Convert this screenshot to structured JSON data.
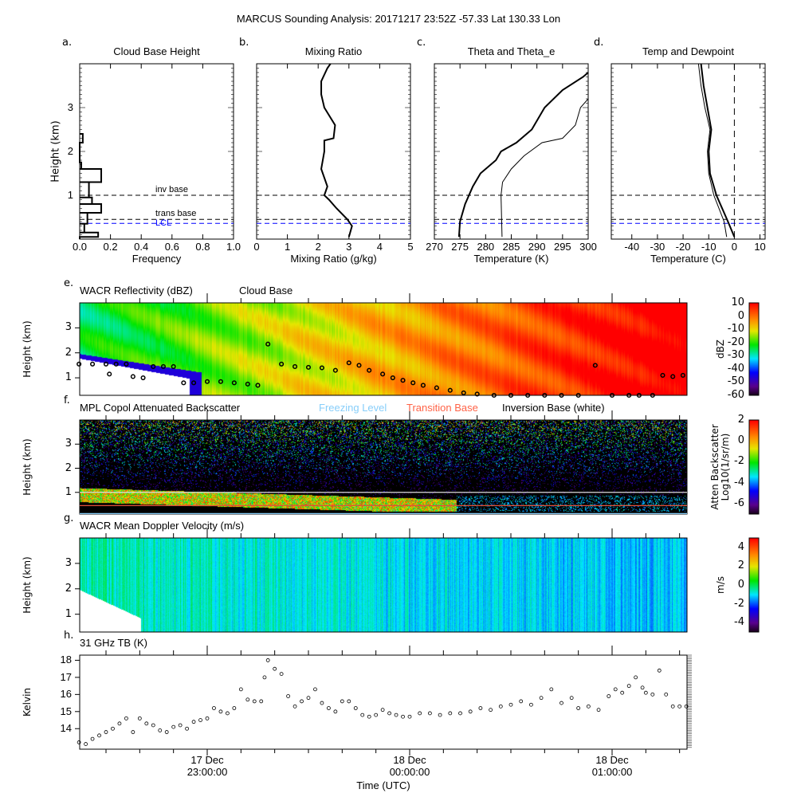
{
  "title": "MARCUS Sounding Analysis: 20171217 23:52Z   -57.33 Lat  130.33 Lon",
  "chart_data": [
    {
      "id": "a",
      "type": "step",
      "letter": "a.",
      "title": "Cloud Base Height",
      "xlabel": "Frequency",
      "ylabel": "Height (km)",
      "xlim": [
        0,
        1
      ],
      "ylim": [
        0,
        4
      ],
      "xticks": [
        "0.0",
        "0.2",
        "0.4",
        "0.6",
        "0.8",
        "1.0"
      ],
      "yticks": [
        "1",
        "2",
        "3"
      ],
      "bins": [
        {
          "from": 0.05,
          "to": 0.15,
          "freq": 0.12
        },
        {
          "from": 0.15,
          "to": 0.35,
          "freq": 0.03
        },
        {
          "from": 0.35,
          "to": 0.6,
          "freq": 0.05
        },
        {
          "from": 0.6,
          "to": 0.8,
          "freq": 0.14
        },
        {
          "from": 0.8,
          "to": 0.95,
          "freq": 0.08
        },
        {
          "from": 0.95,
          "to": 1.3,
          "freq": 0.06
        },
        {
          "from": 1.3,
          "to": 1.6,
          "freq": 0.14
        },
        {
          "from": 1.6,
          "to": 1.75,
          "freq": 0.01
        },
        {
          "from": 1.75,
          "to": 2.2,
          "freq": 0
        },
        {
          "from": 2.2,
          "to": 2.4,
          "freq": 0.02
        }
      ],
      "ref_lines": [
        {
          "label": "inv base",
          "height": 1.0,
          "color": "#000000"
        },
        {
          "label": "trans base",
          "height": 0.45,
          "color": "#000000"
        },
        {
          "label": "LCL",
          "height": 0.36,
          "color": "#0000ff"
        }
      ]
    },
    {
      "id": "b",
      "type": "line",
      "letter": "b.",
      "title": "Mixing Ratio",
      "xlabel": "Mixing Ratio (g/kg)",
      "xlim": [
        0,
        5
      ],
      "ylim": [
        0,
        4
      ],
      "xticks": [
        "0",
        "1",
        "2",
        "3",
        "4",
        "5"
      ],
      "series": [
        {
          "x": [
            3.0,
            3.1,
            2.95,
            2.6,
            2.35,
            2.2,
            2.3,
            2.1,
            2.2,
            2.2,
            2.5,
            2.55,
            2.2,
            2.1,
            2.1,
            2.3,
            2.4
          ],
          "y": [
            0.05,
            0.3,
            0.45,
            0.7,
            0.9,
            1.0,
            1.2,
            1.6,
            2.0,
            2.25,
            2.3,
            2.6,
            3.0,
            3.3,
            3.6,
            3.9,
            4.0
          ],
          "width": 2
        }
      ]
    },
    {
      "id": "c",
      "type": "line",
      "letter": "c.",
      "title": "Theta and Theta_e",
      "xlabel": "Temperature (K)",
      "xlim": [
        270,
        300
      ],
      "ylim": [
        0,
        4
      ],
      "xticks": [
        "270",
        "275",
        "280",
        "285",
        "290",
        "295",
        "300"
      ],
      "series": [
        {
          "x": [
            274.8,
            275,
            276,
            277.5,
            279,
            282,
            283,
            286,
            289,
            291.5,
            295,
            299,
            300
          ],
          "y": [
            0.05,
            0.4,
            0.8,
            1.2,
            1.5,
            1.8,
            2.0,
            2.2,
            2.5,
            3.0,
            3.4,
            3.7,
            3.8
          ],
          "width": 2
        },
        {
          "x": [
            283.2,
            283,
            283.3,
            285,
            287.5,
            291,
            295,
            297.5,
            298.5,
            300
          ],
          "y": [
            0.05,
            1.0,
            1.3,
            1.6,
            1.9,
            2.2,
            2.3,
            2.6,
            3.0,
            3.2
          ],
          "width": 1
        }
      ]
    },
    {
      "id": "d",
      "type": "line",
      "letter": "d.",
      "title": "Temp and Dewpoint",
      "xlabel": "Temperature (C)",
      "xlim": [
        -48,
        12
      ],
      "ylim": [
        0,
        4
      ],
      "xticks": [
        "-40",
        "-30",
        "-20",
        "-10",
        "0",
        "10"
      ],
      "series": [
        {
          "x": [
            0,
            -2.5,
            -7,
            -9.5,
            -10,
            -9,
            -10.5,
            -12,
            -13
          ],
          "y": [
            0.05,
            0.4,
            1.0,
            1.5,
            2.0,
            2.5,
            3.0,
            3.5,
            4.0
          ],
          "width": 2
        },
        {
          "x": [
            -3,
            -4,
            -8,
            -10,
            -10.5,
            -9.5,
            -11.5,
            -13,
            -14
          ],
          "y": [
            0.05,
            0.4,
            1.0,
            1.5,
            2.0,
            2.5,
            3.0,
            3.5,
            4.0
          ],
          "width": 1
        }
      ]
    },
    {
      "id": "e",
      "type": "heatmap",
      "letter": "e.",
      "title": "WACR Reflectivity (dBZ)",
      "overlay_label": "Cloud Base",
      "ylabel": "Height (km)",
      "yticks": [
        "1",
        "2",
        "3"
      ],
      "colorbar": {
        "label": "dBZ",
        "ticks": [
          "10",
          "0",
          "-10",
          "-20",
          "-30",
          "-40",
          "-50",
          "-60"
        ],
        "range": [
          -60,
          10
        ]
      },
      "cloud_base": {
        "time": [
          "22:22",
          "22:26",
          "22:30",
          "22:31",
          "22:33",
          "22:36",
          "22:38",
          "22:41",
          "22:44",
          "22:47",
          "22:50",
          "22:53",
          "22:56",
          "23:00",
          "23:04",
          "23:08",
          "23:12",
          "23:15",
          "23:18",
          "23:22",
          "23:26",
          "23:30",
          "23:34",
          "23:38",
          "23:42",
          "23:45",
          "23:48",
          "23:52",
          "23:55",
          "23:58",
          "00:01",
          "00:04",
          "00:08",
          "00:12",
          "00:16",
          "00:20",
          "00:25",
          "00:30",
          "00:35",
          "00:40",
          "00:45",
          "00:50",
          "00:55",
          "01:00",
          "01:05",
          "01:08",
          "01:12",
          "01:15",
          "01:18",
          "01:21"
        ],
        "height": [
          1.55,
          1.55,
          1.55,
          1.15,
          1.55,
          1.55,
          1.05,
          1.0,
          1.45,
          1.45,
          1.45,
          0.8,
          0.8,
          0.85,
          0.85,
          0.8,
          0.75,
          0.7,
          2.35,
          1.55,
          1.45,
          1.42,
          1.4,
          1.3,
          1.6,
          1.5,
          1.3,
          1.15,
          1.0,
          0.9,
          0.8,
          0.7,
          0.6,
          0.5,
          0.4,
          0.35,
          0.3,
          0.3,
          0.3,
          0.3,
          0.3,
          0.3,
          1.5,
          0.3,
          0.3,
          0.3,
          0.3,
          1.1,
          1.05,
          1.1
        ]
      }
    },
    {
      "id": "f",
      "type": "heatmap",
      "letter": "f.",
      "title": "MPL Copol Attenuated Backscatter",
      "legend": [
        {
          "label": "Freezing Level",
          "color": "#87cefa"
        },
        {
          "label": "Transition Base",
          "color": "#ff6347"
        },
        {
          "label": "Inversion Base (white)",
          "color": "#000000"
        }
      ],
      "ylabel": "Height (km)",
      "yticks": [
        "1",
        "2",
        "3"
      ],
      "colorbar": {
        "label": "Atten Backscatter\nLog10(1/sr/m)",
        "label1": "Atten Backscatter",
        "label2": "Log10(1/sr/m)",
        "ticks": [
          "2",
          "0",
          "-2",
          "-4",
          "-6"
        ],
        "range": [
          -7,
          2
        ]
      },
      "lines": {
        "inversion_base_km": 1.0,
        "transition_base_km": 0.45,
        "freezing_level_km": 0.12
      }
    },
    {
      "id": "g",
      "type": "heatmap",
      "letter": "g.",
      "title": "WACR Mean Doppler Velocity (m/s)",
      "ylabel": "Height (km)",
      "yticks": [
        "1",
        "2",
        "3"
      ],
      "colorbar": {
        "label": "m/s",
        "ticks": [
          "4",
          "2",
          "0",
          "-2",
          "-4"
        ],
        "range": [
          -5,
          5
        ]
      }
    },
    {
      "id": "h",
      "type": "scatter",
      "letter": "h.",
      "title": "31 GHz TB (K)",
      "ylabel": "Kelvin",
      "xlabel": "Time (UTC)",
      "ylim": [
        12.8,
        18.3
      ],
      "yticks": [
        "14",
        "15",
        "16",
        "17",
        "18"
      ],
      "xticks": [
        {
          "day": "17 Dec",
          "time": "23:00:00"
        },
        {
          "day": "18 Dec",
          "time": "00:00:00"
        },
        {
          "day": "18 Dec",
          "time": "01:00:00"
        }
      ],
      "time": [
        "22:22",
        "22:24",
        "22:26",
        "22:28",
        "22:30",
        "22:32",
        "22:34",
        "22:36",
        "22:38",
        "22:40",
        "22:42",
        "22:44",
        "22:46",
        "22:48",
        "22:50",
        "22:52",
        "22:54",
        "22:56",
        "22:58",
        "23:00",
        "23:02",
        "23:04",
        "23:06",
        "23:08",
        "23:10",
        "23:12",
        "23:14",
        "23:16",
        "23:17",
        "23:18",
        "23:20",
        "23:22",
        "23:24",
        "23:26",
        "23:28",
        "23:30",
        "23:32",
        "23:34",
        "23:36",
        "23:38",
        "23:40",
        "23:42",
        "23:44",
        "23:46",
        "23:48",
        "23:50",
        "23:52",
        "23:54",
        "23:56",
        "23:58",
        "00:00",
        "00:03",
        "00:06",
        "00:09",
        "00:12",
        "00:15",
        "00:18",
        "00:21",
        "00:24",
        "00:27",
        "00:30",
        "00:33",
        "00:36",
        "00:39",
        "00:42",
        "00:45",
        "00:48",
        "00:50",
        "00:53",
        "00:56",
        "00:59",
        "01:01",
        "01:03",
        "01:05",
        "01:07",
        "01:09",
        "01:10",
        "01:12",
        "01:14",
        "01:16",
        "01:18",
        "01:20",
        "01:22"
      ],
      "values": [
        13.2,
        13.1,
        13.4,
        13.6,
        13.8,
        14.0,
        14.3,
        14.6,
        13.8,
        14.6,
        14.3,
        14.2,
        13.9,
        13.8,
        14.1,
        14.2,
        14.0,
        14.4,
        14.5,
        14.6,
        15.2,
        15.0,
        14.9,
        15.2,
        16.3,
        15.7,
        15.6,
        15.6,
        17.0,
        18.0,
        17.5,
        17.2,
        15.9,
        15.3,
        15.6,
        15.8,
        16.3,
        15.5,
        15.2,
        15.0,
        15.6,
        15.6,
        15.2,
        14.8,
        14.7,
        14.8,
        15.1,
        14.9,
        14.8,
        14.7,
        14.7,
        14.9,
        14.9,
        14.8,
        14.9,
        14.9,
        15.0,
        15.2,
        15.1,
        15.3,
        15.4,
        15.6,
        15.4,
        15.8,
        16.3,
        15.5,
        15.8,
        15.2,
        15.3,
        15.1,
        15.9,
        16.3,
        16.1,
        16.5,
        17.0,
        16.4,
        16.1,
        16.0,
        17.4,
        16.0,
        15.3,
        15.3,
        15.3
      ]
    }
  ]
}
